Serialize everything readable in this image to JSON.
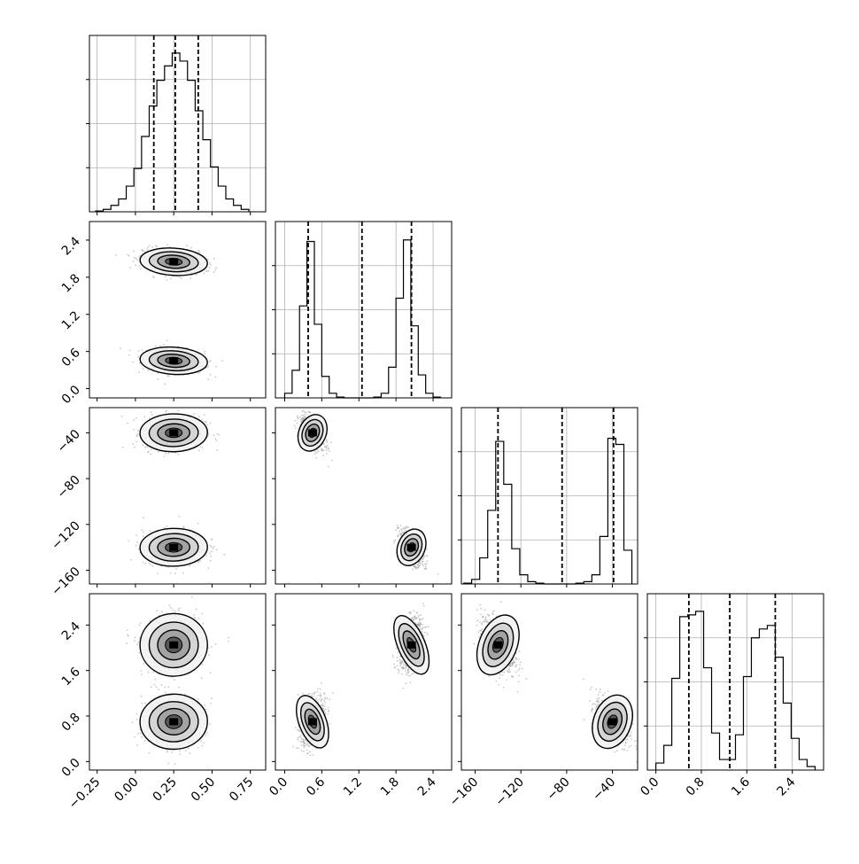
{
  "chart_data": {
    "type": "corner",
    "parameters": [
      {
        "range": [
          -0.3,
          0.85
        ],
        "ticks": [
          -0.25,
          0.0,
          0.25,
          0.5,
          0.75
        ],
        "tick_labels": [
          "−0.25",
          "0.00",
          "0.25",
          "0.50",
          "0.75"
        ],
        "quantiles": [
          0.12,
          0.26,
          0.41
        ]
      },
      {
        "range": [
          -0.15,
          2.7
        ],
        "ticks": [
          0.0,
          0.6,
          1.2,
          1.8,
          2.4
        ],
        "tick_labels": [
          "0.0",
          "0.6",
          "1.2",
          "1.8",
          "2.4"
        ],
        "quantiles": [
          0.38,
          1.25,
          2.05
        ]
      },
      {
        "range": [
          -172,
          -18
        ],
        "ticks": [
          -160,
          -120,
          -80,
          -40
        ],
        "tick_labels": [
          "−160",
          "−120",
          "−80",
          "−40"
        ],
        "quantiles": [
          -140,
          -84,
          -39
        ]
      },
      {
        "range": [
          -0.15,
          2.95
        ],
        "ticks": [
          0.0,
          0.8,
          1.6,
          2.4
        ],
        "tick_labels": [
          "0.0",
          "0.8",
          "1.6",
          "2.4"
        ],
        "quantiles": [
          0.58,
          1.3,
          2.1
        ]
      }
    ],
    "histograms": [
      {
        "bins": [
          -0.26,
          -0.21,
          -0.16,
          -0.11,
          -0.06,
          -0.01,
          0.04,
          0.09,
          0.14,
          0.19,
          0.24,
          0.29,
          0.34,
          0.39,
          0.44,
          0.49,
          0.54,
          0.59,
          0.64,
          0.69,
          0.74
        ],
        "counts": [
          0.5,
          1.5,
          4,
          8,
          16,
          27,
          47,
          66,
          82,
          91,
          99,
          94,
          82,
          63,
          45,
          28,
          16,
          8,
          4,
          1.5
        ],
        "ymax": 110
      },
      {
        "bins": [
          0.0,
          0.12,
          0.24,
          0.36,
          0.48,
          0.6,
          0.72,
          0.84,
          0.96,
          1.08,
          1.2,
          1.32,
          1.44,
          1.56,
          1.68,
          1.8,
          1.92,
          2.04,
          2.16,
          2.28,
          2.4,
          2.52
        ],
        "counts": [
          3,
          18,
          60,
          102,
          48,
          14,
          3,
          0.5,
          0,
          0,
          0,
          0,
          0.5,
          3,
          20,
          65,
          103,
          47,
          15,
          3,
          0.5
        ],
        "ymax": 115
      },
      {
        "bins": [
          -170,
          -163,
          -156,
          -149,
          -142,
          -135,
          -128,
          -121,
          -114,
          -107,
          -100,
          -93,
          -86,
          -79,
          -72,
          -65,
          -58,
          -51,
          -44,
          -37,
          -30,
          -23
        ],
        "counts": [
          0.5,
          3,
          17,
          48,
          93,
          65,
          23,
          6,
          1.5,
          0.5,
          0,
          0,
          0,
          0,
          0.5,
          1.5,
          6,
          31,
          95,
          91,
          22
        ],
        "ymax": 115
      },
      {
        "bins": [
          0.0,
          0.14,
          0.28,
          0.42,
          0.56,
          0.7,
          0.84,
          0.98,
          1.12,
          1.26,
          1.4,
          1.54,
          1.68,
          1.82,
          1.96,
          2.1,
          2.24,
          2.38,
          2.52,
          2.66,
          2.8
        ],
        "counts": [
          4,
          14,
          52,
          87,
          88,
          90,
          58,
          21,
          6,
          6,
          20,
          53,
          75,
          80,
          82,
          64,
          38,
          18,
          6,
          2
        ],
        "ymax": 100
      }
    ],
    "clusters": [
      [
        0.25,
        0.45,
        -40,
        0.7,
        0.1,
        0.1,
        7.5,
        0.22
      ],
      [
        0.25,
        2.05,
        -140,
        2.05,
        0.1,
        0.1,
        7.5,
        0.25
      ]
    ]
  }
}
